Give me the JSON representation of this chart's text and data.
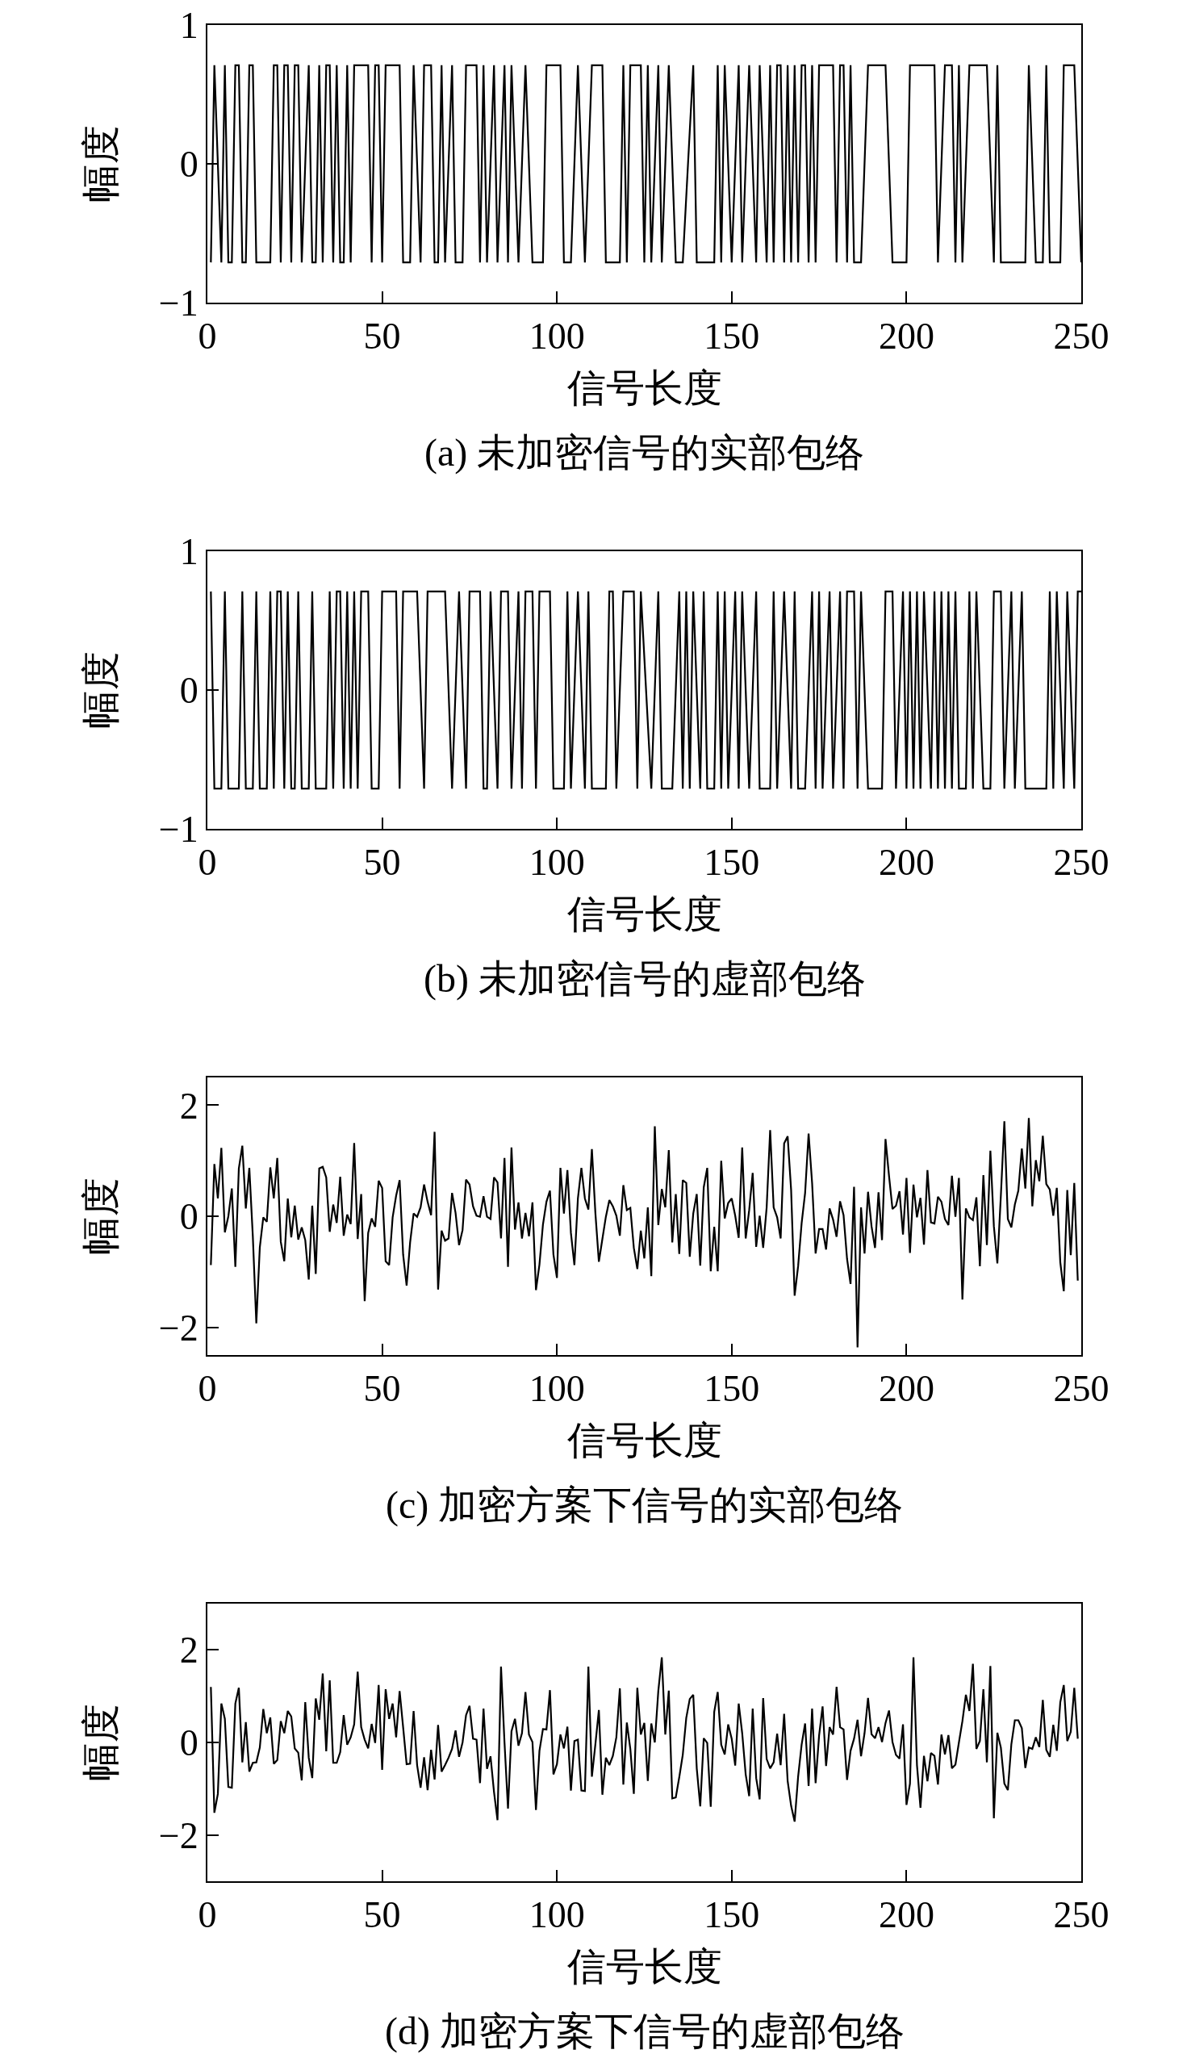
{
  "chart_data": [
    {
      "type": "line",
      "xlabel": "信号长度",
      "ylabel": "幅度",
      "annotations": [
        "(a) 未加密信号的实部包络"
      ],
      "color": "#000000",
      "xlim": [
        0,
        250
      ],
      "xticks": [
        0,
        50,
        100,
        150,
        200,
        250
      ],
      "ylim": [
        -1,
        1
      ],
      "yticks": [
        -1,
        0,
        1
      ],
      "x": [
        1,
        2,
        4,
        5,
        6,
        7,
        8,
        9,
        10,
        11,
        12,
        13,
        14,
        18,
        19,
        20,
        21,
        22,
        23,
        24,
        25,
        26,
        27,
        29,
        30,
        31,
        32,
        33,
        34,
        35,
        36,
        37,
        38,
        39,
        40,
        41,
        42,
        46,
        47,
        48,
        49,
        50,
        51,
        55,
        56,
        58,
        59,
        61,
        62,
        64,
        65,
        66,
        67,
        68,
        70,
        71,
        73,
        74,
        77,
        78,
        79,
        80,
        82,
        83,
        85,
        86,
        87,
        89,
        91,
        93,
        96,
        97,
        101,
        102,
        104,
        106,
        108,
        110,
        113,
        114,
        118,
        119,
        120,
        121,
        124,
        125,
        126,
        127,
        129,
        130,
        132,
        134,
        136,
        139,
        140,
        145,
        146,
        147,
        148,
        150,
        152,
        153,
        155,
        157,
        158,
        160,
        161,
        162,
        163,
        164,
        165,
        166,
        167,
        168,
        169,
        170,
        171,
        172,
        173,
        174,
        175,
        179,
        180,
        181,
        182,
        183,
        184,
        185,
        187,
        189,
        194,
        196,
        200,
        201,
        208,
        209,
        211,
        213,
        214,
        215,
        216,
        218,
        223,
        225,
        226,
        227,
        234,
        235,
        237,
        239,
        240,
        241,
        244,
        245,
        248,
        250
      ],
      "values": [
        -0.71,
        0.71,
        -0.71,
        0.71,
        -0.71,
        -0.71,
        0.71,
        0.71,
        -0.71,
        -0.71,
        0.71,
        0.71,
        -0.71,
        -0.71,
        0.71,
        0.71,
        -0.71,
        0.71,
        0.71,
        -0.71,
        0.71,
        0.71,
        -0.71,
        0.71,
        -0.71,
        -0.71,
        0.71,
        -0.71,
        0.71,
        0.71,
        -0.71,
        0.71,
        -0.71,
        -0.71,
        0.71,
        -0.71,
        0.71,
        0.71,
        -0.71,
        0.71,
        0.71,
        -0.71,
        0.71,
        0.71,
        -0.71,
        -0.71,
        0.71,
        -0.71,
        0.71,
        0.71,
        -0.71,
        -0.71,
        0.71,
        -0.71,
        0.71,
        -0.71,
        -0.71,
        0.71,
        0.71,
        -0.71,
        0.71,
        -0.71,
        0.71,
        -0.71,
        0.71,
        -0.71,
        0.71,
        -0.71,
        0.71,
        -0.71,
        -0.71,
        0.71,
        0.71,
        -0.71,
        -0.71,
        0.71,
        -0.71,
        0.71,
        0.71,
        -0.71,
        -0.71,
        0.71,
        -0.71,
        0.71,
        0.71,
        -0.71,
        0.71,
        -0.71,
        0.71,
        -0.71,
        0.71,
        -0.71,
        -0.71,
        0.71,
        -0.71,
        -0.71,
        0.71,
        -0.71,
        0.71,
        -0.71,
        0.71,
        -0.71,
        0.71,
        -0.71,
        0.71,
        -0.71,
        0.71,
        -0.71,
        0.71,
        0.71,
        -0.71,
        0.71,
        -0.71,
        0.71,
        -0.71,
        0.71,
        0.71,
        -0.71,
        0.71,
        -0.71,
        0.71,
        0.71,
        -0.71,
        0.71,
        0.71,
        -0.71,
        0.71,
        -0.71,
        -0.71,
        0.71,
        0.71,
        -0.71,
        -0.71,
        0.71,
        0.71,
        -0.71,
        0.71,
        0.71,
        -0.71,
        0.71,
        -0.71,
        0.71,
        0.71,
        -0.71,
        0.71,
        -0.71,
        -0.71,
        0.71,
        -0.71,
        -0.71,
        0.71,
        -0.71,
        -0.71,
        0.71,
        0.71,
        -0.71
      ]
    },
    {
      "type": "line",
      "xlabel": "信号长度",
      "ylabel": "幅度",
      "annotations": [
        "(b) 未加密信号的虚部包络"
      ],
      "color": "#000000",
      "xlim": [
        0,
        250
      ],
      "xticks": [
        0,
        50,
        100,
        150,
        200,
        250
      ],
      "ylim": [
        -1,
        1
      ],
      "yticks": [
        -1,
        0,
        1
      ],
      "x": [
        1,
        2,
        4,
        5,
        6,
        9,
        10,
        11,
        13,
        14,
        15,
        17,
        18,
        19,
        20,
        21,
        22,
        23,
        24,
        25,
        26,
        27,
        29,
        30,
        31,
        34,
        35,
        36,
        37,
        38,
        39,
        40,
        41,
        42,
        43,
        44,
        46,
        47,
        49,
        50,
        54,
        55,
        56,
        60,
        62,
        63,
        68,
        70,
        72,
        74,
        75,
        78,
        79,
        80,
        81,
        83,
        84,
        86,
        87,
        89,
        90,
        91,
        93,
        94,
        95,
        98,
        99,
        102,
        103,
        104,
        106,
        108,
        109,
        110,
        114,
        115,
        116,
        117,
        119,
        122,
        123,
        124,
        127,
        129,
        130,
        133,
        135,
        136,
        137,
        138,
        139,
        141,
        142,
        143,
        145,
        146,
        147,
        148,
        149,
        151,
        152,
        153,
        155,
        157,
        158,
        161,
        162,
        163,
        165,
        167,
        168,
        169,
        171,
        173,
        174,
        175,
        176,
        178,
        179,
        181,
        182,
        183,
        185,
        186,
        187,
        189,
        193,
        194,
        196,
        197,
        199,
        200,
        201,
        202,
        203,
        204,
        205,
        207,
        208,
        209,
        210,
        211,
        212,
        213,
        214,
        215,
        217,
        218,
        219,
        220,
        222,
        224,
        225,
        227,
        228,
        230,
        231,
        233,
        234,
        240,
        241,
        242,
        243,
        245,
        246,
        248,
        249,
        250
      ],
      "values": [
        0.71,
        -0.71,
        -0.71,
        0.71,
        -0.71,
        -0.71,
        0.71,
        -0.71,
        -0.71,
        0.71,
        -0.71,
        -0.71,
        0.71,
        -0.71,
        0.71,
        0.71,
        -0.71,
        0.71,
        -0.71,
        -0.71,
        0.71,
        -0.71,
        -0.71,
        0.71,
        -0.71,
        -0.71,
        0.71,
        -0.71,
        0.71,
        0.71,
        -0.71,
        0.71,
        -0.71,
        0.71,
        -0.71,
        0.71,
        0.71,
        -0.71,
        -0.71,
        0.71,
        0.71,
        -0.71,
        0.71,
        0.71,
        -0.71,
        0.71,
        0.71,
        -0.71,
        0.71,
        -0.71,
        0.71,
        0.71,
        -0.71,
        -0.71,
        0.71,
        -0.71,
        0.71,
        0.71,
        -0.71,
        0.71,
        -0.71,
        0.71,
        0.71,
        -0.71,
        0.71,
        0.71,
        -0.71,
        -0.71,
        0.71,
        -0.71,
        0.71,
        -0.71,
        0.71,
        -0.71,
        -0.71,
        0.71,
        0.71,
        -0.71,
        0.71,
        0.71,
        -0.71,
        0.71,
        -0.71,
        0.71,
        -0.71,
        -0.71,
        0.71,
        -0.71,
        0.71,
        -0.71,
        0.71,
        -0.71,
        0.71,
        -0.71,
        -0.71,
        0.71,
        -0.71,
        0.71,
        -0.71,
        0.71,
        -0.71,
        0.71,
        -0.71,
        0.71,
        -0.71,
        -0.71,
        0.71,
        -0.71,
        0.71,
        -0.71,
        0.71,
        -0.71,
        -0.71,
        0.71,
        -0.71,
        0.71,
        -0.71,
        0.71,
        -0.71,
        0.71,
        -0.71,
        0.71,
        0.71,
        -0.71,
        0.71,
        -0.71,
        -0.71,
        0.71,
        0.71,
        -0.71,
        0.71,
        -0.71,
        0.71,
        -0.71,
        0.71,
        -0.71,
        0.71,
        -0.71,
        0.71,
        -0.71,
        0.71,
        -0.71,
        0.71,
        -0.71,
        0.71,
        -0.71,
        -0.71,
        0.71,
        -0.71,
        0.71,
        -0.71,
        -0.71,
        0.71,
        0.71,
        -0.71,
        0.71,
        -0.71,
        0.71,
        -0.71,
        -0.71,
        0.71,
        -0.71,
        0.71,
        -0.71,
        0.71,
        -0.71,
        0.71,
        0.71
      ]
    },
    {
      "type": "line",
      "xlabel": "信号长度",
      "ylabel": "幅度",
      "annotations": [
        "(c) 加密方案下信号的实部包络"
      ],
      "color": "#000000",
      "xlim": [
        0,
        250
      ],
      "xticks": [
        0,
        50,
        100,
        150,
        200,
        250
      ],
      "ylim": [
        -2.5,
        2.5
      ],
      "yticks": [
        -2,
        0,
        2
      ],
      "x": [
        1,
        2,
        3,
        4,
        5,
        6,
        7,
        8,
        9,
        10,
        11,
        12,
        13,
        14,
        15,
        16,
        17,
        18,
        19,
        20,
        21,
        22,
        23,
        24,
        25,
        26,
        27,
        28,
        29,
        30,
        31,
        32,
        33,
        34,
        35,
        36,
        37,
        38,
        39,
        40,
        41,
        42,
        43,
        44,
        45,
        46,
        47,
        48,
        49,
        50,
        51,
        52,
        53,
        54,
        55,
        56,
        57,
        58,
        59,
        60,
        61,
        62,
        63,
        64,
        65,
        66,
        67,
        68,
        69,
        70,
        71,
        72,
        73,
        74,
        75,
        76,
        77,
        78,
        79,
        80,
        81,
        82,
        83,
        84,
        85,
        86,
        87,
        88,
        89,
        90,
        91,
        92,
        93,
        94,
        95,
        96,
        97,
        98,
        99,
        100,
        101,
        102,
        103,
        104,
        105,
        106,
        107,
        108,
        109,
        110,
        111,
        112,
        113,
        114,
        115,
        116,
        117,
        118,
        119,
        120,
        121,
        122,
        123,
        124,
        125,
        126,
        127,
        128,
        129,
        130,
        131,
        132,
        133,
        134,
        135,
        136,
        137,
        138,
        139,
        140,
        141,
        142,
        143,
        144,
        145,
        146,
        147,
        148,
        149,
        150,
        151,
        152,
        153,
        154,
        155,
        156,
        157,
        158,
        159,
        160,
        161,
        162,
        163,
        164,
        165,
        166,
        167,
        168,
        169,
        170,
        171,
        172,
        173,
        174,
        175,
        176,
        177,
        178,
        179,
        180,
        181,
        182,
        183,
        184,
        185,
        186,
        187,
        188,
        189,
        190,
        191,
        192,
        193,
        194,
        195,
        196,
        197,
        198,
        199,
        200,
        201,
        202,
        203,
        204,
        205,
        206,
        207,
        208,
        209,
        210,
        211,
        212,
        213,
        214,
        215,
        216,
        217,
        218,
        219,
        220,
        221,
        222,
        223,
        224,
        225,
        226,
        227,
        228,
        229,
        230,
        231,
        232,
        233,
        234,
        235,
        236,
        237,
        238,
        239,
        240,
        241,
        242,
        243,
        244,
        245,
        246,
        247,
        248,
        249
      ],
      "values": [
        -0.88,
        0.94,
        0.32,
        1.23,
        -0.29,
        0,
        0.5,
        -0.91,
        0.86,
        1.27,
        0.14,
        0.87,
        -0.36,
        -1.93,
        -0.56,
        -0.02,
        -0.1,
        0.88,
        0.32,
        1.05,
        -0.46,
        -0.81,
        0.32,
        -0.38,
        0.19,
        -0.42,
        -0.2,
        -0.43,
        -1.14,
        0.19,
        -1.04,
        0.86,
        0.89,
        0.7,
        -0.28,
        0.21,
        -0.12,
        0.71,
        -0.35,
        0.03,
        -0.14,
        1.32,
        -0.41,
        0.4,
        -1.53,
        -0.3,
        -0.04,
        -0.19,
        0.64,
        0.51,
        -0.81,
        -0.88,
        -0.02,
        0.37,
        0.65,
        -0.69,
        -1.25,
        -0.47,
        0.05,
        -0.01,
        0.16,
        0.57,
        0.26,
        0.02,
        1.52,
        -1.32,
        -0.26,
        -0.44,
        -0.4,
        0.42,
        0.06,
        -0.52,
        -0.25,
        0.66,
        0.57,
        0.18,
        0.01,
        -0.01,
        0.36,
        -0.01,
        -0.05,
        0.7,
        0.61,
        -0.4,
        1.05,
        -0.91,
        1.24,
        -0.24,
        0.25,
        -0.4,
        0.06,
        -0.36,
        0.25,
        -1.33,
        -0.87,
        -0.15,
        0.26,
        0.46,
        -0.69,
        -1.11,
        0.87,
        0.05,
        0.83,
        -0.3,
        -0.88,
        0.32,
        0.87,
        0.32,
        0.12,
        1.21,
        0.06,
        -0.82,
        -0.41,
        -0.01,
        0.29,
        0.18,
        0.01,
        -0.35,
        0.56,
        0.11,
        0.15,
        -0.57,
        -0.95,
        -0.26,
        -0.76,
        0.16,
        -1.08,
        1.62,
        -0.16,
        0.49,
        0.16,
        1.19,
        -0.47,
        0.4,
        -0.68,
        0.65,
        0.6,
        -0.73,
        0.05,
        0.4,
        -0.89,
        0.52,
        0.87,
        -0.99,
        -0.19,
        -0.99,
        1.0,
        -0.04,
        0.24,
        0.32,
        0.01,
        -0.39,
        1.24,
        -0.4,
        0.11,
        0.78,
        -0.55,
        0.01,
        -0.57,
        0.16,
        1.55,
        0.16,
        -0.02,
        -0.4,
        1.31,
        1.44,
        0.47,
        -1.43,
        -0.9,
        -0.13,
        0.42,
        1.49,
        0.6,
        -0.67,
        -0.23,
        -0.23,
        -0.6,
        0.14,
        -0.06,
        -0.37,
        0.27,
        0.02,
        -0.77,
        -1.22,
        0.53,
        -2.36,
        0.16,
        -0.67,
        0.44,
        -0.18,
        -0.57,
        0.43,
        -0.43,
        1.39,
        0.73,
        0.13,
        0.19,
        0.45,
        -0.33,
        0.69,
        -0.66,
        0.57,
        -0.02,
        0.33,
        -0.51,
        0.83,
        -0.11,
        -0.13,
        0.35,
        0.26,
        -0.05,
        -0.16,
        0.73,
        -0.01,
        0.69,
        -1.5,
        0.14,
        -0.02,
        -0.07,
        0.34,
        -0.9,
        0.74,
        -0.52,
        1.18,
        -0.18,
        -0.85,
        0.37,
        1.71,
        -0.05,
        -0.2,
        0.21,
        0.46,
        1.22,
        0.5,
        1.77,
        0.18,
        1.01,
        0.63,
        1.45,
        0.58,
        0.48,
        0.01,
        0.51,
        -0.83,
        -1.35,
        0.47,
        -0.7,
        0.6,
        -1.16
      ]
    },
    {
      "type": "line",
      "xlabel": "信号长度",
      "ylabel": "幅度",
      "annotations": [
        "(d) 加密方案下信号的虚部包络"
      ],
      "color": "#000000",
      "xlim": [
        0,
        250
      ],
      "xticks": [
        0,
        50,
        100,
        150,
        200,
        250
      ],
      "ylim": [
        -3,
        3
      ],
      "yticks": [
        -2,
        0,
        2
      ],
      "x": [
        1,
        2,
        3,
        4,
        5,
        6,
        7,
        8,
        9,
        10,
        11,
        12,
        13,
        14,
        15,
        16,
        17,
        18,
        19,
        20,
        21,
        22,
        23,
        24,
        25,
        26,
        27,
        28,
        29,
        30,
        31,
        32,
        33,
        34,
        35,
        36,
        37,
        38,
        39,
        40,
        41,
        42,
        43,
        44,
        45,
        46,
        47,
        48,
        49,
        50,
        51,
        52,
        53,
        54,
        55,
        56,
        57,
        58,
        59,
        60,
        61,
        62,
        63,
        64,
        65,
        66,
        67,
        68,
        69,
        70,
        71,
        72,
        73,
        74,
        75,
        76,
        77,
        78,
        79,
        80,
        81,
        82,
        83,
        84,
        85,
        86,
        87,
        88,
        89,
        90,
        91,
        92,
        93,
        94,
        95,
        96,
        97,
        98,
        99,
        100,
        101,
        102,
        103,
        104,
        105,
        106,
        107,
        108,
        109,
        110,
        111,
        112,
        113,
        114,
        115,
        116,
        117,
        118,
        119,
        120,
        121,
        122,
        123,
        124,
        125,
        126,
        127,
        128,
        129,
        130,
        131,
        132,
        133,
        134,
        135,
        136,
        137,
        138,
        139,
        140,
        141,
        142,
        143,
        144,
        145,
        146,
        147,
        148,
        149,
        150,
        151,
        152,
        153,
        154,
        155,
        156,
        157,
        158,
        159,
        160,
        161,
        162,
        163,
        164,
        165,
        166,
        167,
        168,
        169,
        170,
        171,
        172,
        173,
        174,
        175,
        176,
        177,
        178,
        179,
        180,
        181,
        182,
        183,
        184,
        185,
        186,
        187,
        188,
        189,
        190,
        191,
        192,
        193,
        194,
        195,
        196,
        197,
        198,
        199,
        200,
        201,
        202,
        203,
        204,
        205,
        206,
        207,
        208,
        209,
        210,
        211,
        212,
        213,
        214,
        215,
        216,
        217,
        218,
        219,
        220,
        221,
        222,
        223,
        224,
        225,
        226,
        227,
        228,
        229,
        230,
        231,
        232,
        233,
        234,
        235,
        236,
        237,
        238,
        239,
        240,
        241,
        242,
        243,
        244,
        245,
        246,
        247,
        248,
        249
      ],
      "values": [
        1.2,
        -1.52,
        -1.11,
        0.84,
        0.51,
        -0.96,
        -0.98,
        0.84,
        1.18,
        -0.43,
        0.44,
        -0.63,
        -0.44,
        -0.43,
        -0.11,
        0.72,
        0.2,
        0.54,
        -0.46,
        -0.38,
        0.46,
        0.2,
        0.68,
        0.56,
        -0.13,
        -0.22,
        -0.82,
        0.87,
        -0.33,
        -0.77,
        0.95,
        0.49,
        1.49,
        -0.19,
        1.34,
        -0.44,
        -0.44,
        -0.21,
        0.59,
        -0.05,
        0.11,
        0.39,
        1.53,
        0.33,
        0.06,
        -0.13,
        0.4,
        -0.01,
        1.24,
        -0.59,
        1.15,
        0.51,
        0.84,
        0.11,
        1.11,
        0.33,
        -0.47,
        -0.46,
        0.68,
        -0.49,
        -0.98,
        -0.32,
        -1.03,
        -0.16,
        -0.8,
        0.38,
        -0.63,
        -0.49,
        -0.33,
        -0.14,
        0.26,
        -0.31,
        0,
        0.59,
        0.79,
        0.08,
        0.06,
        -0.88,
        0.73,
        -0.57,
        -0.3,
        -1.07,
        -1.68,
        1.64,
        0,
        -1.43,
        0.24,
        0.51,
        -0.07,
        0.2,
        1.09,
        0.17,
        0.01,
        -1.46,
        -0.18,
        0.29,
        0.28,
        1.13,
        -0.69,
        -0.47,
        0.17,
        -0.13,
        0.34,
        -1.04,
        0.03,
        0.06,
        -1.04,
        -1.05,
        1.64,
        -0.74,
        -0.04,
        0.7,
        -1.13,
        -0.33,
        -0.49,
        -0.29,
        0.11,
        1.17,
        -0.91,
        0.43,
        -0.14,
        -1.11,
        1.18,
        0.17,
        0.42,
        -0.83,
        0.41,
        0,
        1.11,
        1.84,
        0.17,
        1.12,
        -1.21,
        -1.19,
        -0.75,
        -0.27,
        0.53,
        0.94,
        1.03,
        -0.56,
        -1.38,
        0.09,
        -0.01,
        -1.39,
        0.66,
        1.09,
        -0.05,
        -0.26,
        0.39,
        0.08,
        -0.5,
        0.84,
        0.2,
        -0.69,
        -1.16,
        0.73,
        -0.77,
        -1.23,
        0.96,
        -0.36,
        -0.56,
        -0.43,
        0.19,
        -0.49,
        0.62,
        -0.83,
        -1.37,
        -1.71,
        -0.74,
        -0.05,
        0.41,
        -0.94,
        0.73,
        -0.88,
        0.15,
        0.78,
        -0.51,
        0.33,
        0.17,
        1.2,
        0.33,
        0.28,
        -0.81,
        -0.18,
        0.08,
        0.49,
        -0.3,
        0.2,
        0.96,
        0.18,
        0.09,
        0.33,
        0.01,
        0.42,
        0.69,
        0.01,
        -0.27,
        -0.35,
        0.39,
        -1.35,
        -0.89,
        1.84,
        -0.49,
        -1.41,
        -0.29,
        -0.84,
        -0.23,
        -0.29,
        -0.91,
        0.17,
        -0.26,
        0.16,
        -0.56,
        -0.48,
        0,
        0.46,
        1.03,
        0.68,
        1.7,
        -0.14,
        0.03,
        1.15,
        -0.43,
        1.65,
        -1.64,
        0.21,
        -0.11,
        -0.89,
        -1.03,
        -0.04,
        0.48,
        0.48,
        0.31,
        -0.55,
        -0.11,
        -0.14,
        0.11,
        -0.1,
        0.92,
        -0.16,
        -0.31,
        0.38,
        -0.18,
        0.87,
        1.24,
        0.03,
        0.23,
        1.18,
        0.08
      ]
    }
  ]
}
